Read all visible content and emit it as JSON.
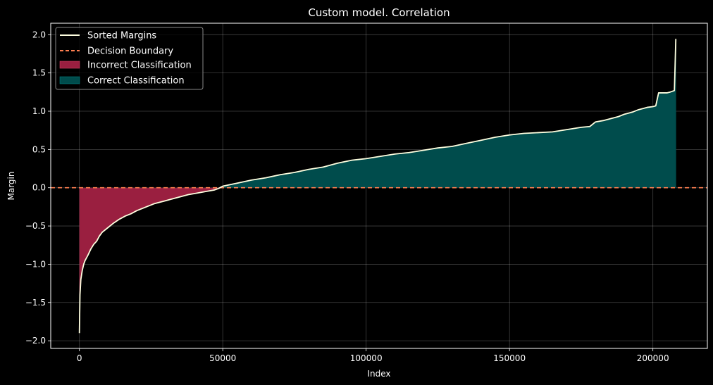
{
  "chart_data": {
    "type": "area",
    "title": "Custom model. Correlation",
    "xlabel": "Index",
    "ylabel": "Margin",
    "xlim": [
      -10000,
      219000
    ],
    "ylim": [
      -2.1,
      2.15
    ],
    "xticks": [
      0,
      50000,
      100000,
      150000,
      200000
    ],
    "xtick_labels": [
      "0",
      "50000",
      "100000",
      "150000",
      "200000"
    ],
    "yticks": [
      -2.0,
      -1.5,
      -1.0,
      -0.5,
      0.0,
      0.5,
      1.0,
      1.5,
      2.0
    ],
    "ytick_labels": [
      "−2.0",
      "−1.5",
      "−1.0",
      "−0.5",
      "0.0",
      "0.5",
      "1.0",
      "1.5",
      "2.0"
    ],
    "grid": true,
    "legend_position": "top-left",
    "decision_boundary": 0.0,
    "series": [
      {
        "name": "Sorted Margins",
        "color": "#ffffe0",
        "x": [
          0,
          200,
          500,
          1000,
          1500,
          2000,
          3000,
          4000,
          5000,
          6000,
          7000,
          8000,
          10000,
          12000,
          14000,
          16000,
          18000,
          20000,
          22000,
          24000,
          26000,
          28000,
          30000,
          32000,
          35000,
          38000,
          41000,
          44000,
          47000,
          48500,
          50000,
          55000,
          60000,
          65000,
          70000,
          75000,
          80000,
          85000,
          90000,
          95000,
          100000,
          105000,
          110000,
          115000,
          120000,
          125000,
          130000,
          135000,
          140000,
          145000,
          150000,
          155000,
          160000,
          165000,
          170000,
          175000,
          178000,
          180000,
          183000,
          185000,
          188000,
          190000,
          193000,
          195000,
          198000,
          200000,
          201000,
          202000,
          205000,
          206000,
          207500,
          208000,
          208100
        ],
        "y": [
          -1.9,
          -1.4,
          -1.2,
          -1.08,
          -1.0,
          -0.95,
          -0.88,
          -0.8,
          -0.74,
          -0.7,
          -0.63,
          -0.58,
          -0.52,
          -0.46,
          -0.41,
          -0.37,
          -0.34,
          -0.3,
          -0.27,
          -0.24,
          -0.21,
          -0.19,
          -0.17,
          -0.15,
          -0.12,
          -0.09,
          -0.07,
          -0.05,
          -0.03,
          -0.01,
          0.02,
          0.06,
          0.1,
          0.13,
          0.17,
          0.2,
          0.24,
          0.27,
          0.32,
          0.36,
          0.38,
          0.41,
          0.44,
          0.46,
          0.49,
          0.52,
          0.54,
          0.58,
          0.62,
          0.66,
          0.69,
          0.71,
          0.72,
          0.73,
          0.76,
          0.79,
          0.8,
          0.86,
          0.88,
          0.9,
          0.93,
          0.96,
          0.99,
          1.02,
          1.05,
          1.06,
          1.07,
          1.24,
          1.24,
          1.25,
          1.27,
          1.94,
          1.94
        ]
      },
      {
        "name": "Decision Boundary",
        "color": "#ff7f50"
      },
      {
        "name": "Incorrect Classification",
        "color": "#9a1f40"
      },
      {
        "name": "Correct Classification",
        "color": "#004c4c"
      }
    ]
  }
}
